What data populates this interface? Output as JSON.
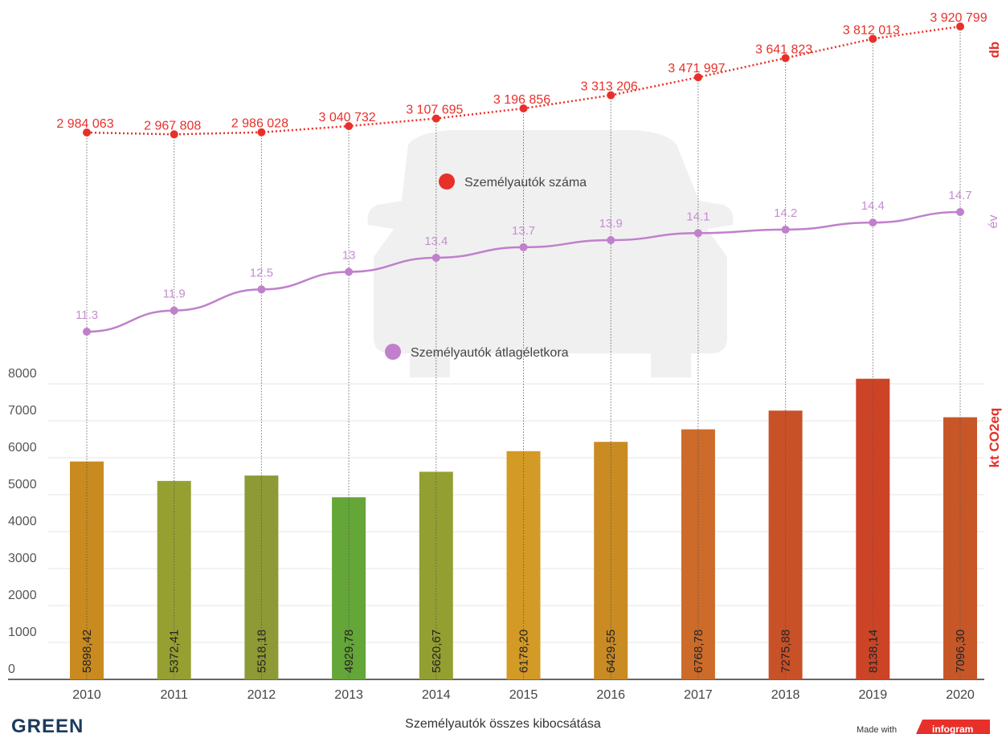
{
  "chart_data": {
    "type": "bar",
    "categories": [
      "2010",
      "2011",
      "2012",
      "2013",
      "2014",
      "2015",
      "2016",
      "2017",
      "2018",
      "2019",
      "2020"
    ],
    "bar_series": {
      "name": "Személyautók összes kibocsátása",
      "unit": "kt CO2eq",
      "values": [
        5898.42,
        5372.41,
        5518.18,
        4929.78,
        5620.67,
        6178.2,
        6429.55,
        6768.78,
        7275.88,
        8138.14,
        7096.3
      ],
      "labels": [
        "5898,42",
        "5372,41",
        "5518,18",
        "4929,78",
        "5620,67",
        "6178,20",
        "6429,55",
        "6768,78",
        "7275,88",
        "8138,14",
        "7096,30"
      ],
      "colors": [
        "#c98a1f",
        "#95a031",
        "#8d9a35",
        "#64a637",
        "#949f31",
        "#d39a26",
        "#c98b22",
        "#cd6b2a",
        "#c85128",
        "#cc4425",
        "#c85728"
      ]
    },
    "line_series": [
      {
        "name": "Személyautók száma",
        "unit": "db",
        "color": "#e8302a",
        "style": "dotted",
        "values": [
          2984063,
          2967808,
          2986028,
          3040732,
          3107695,
          3196856,
          3313206,
          3471997,
          3641823,
          3812013,
          3920799
        ],
        "labels": [
          "2 984 063",
          "2 967 808",
          "2 986 028",
          "3 040 732",
          "3 107 695",
          "3 196 856",
          "3 313 206",
          "3 471 997",
          "3 641 823",
          "3 812 013",
          "3 920 799"
        ]
      },
      {
        "name": "Személyautók átlagéletkora",
        "unit": "év",
        "color": "#c080cc",
        "style": "solid",
        "values": [
          11.3,
          11.9,
          12.5,
          13,
          13.4,
          13.7,
          13.9,
          14.1,
          14.2,
          14.4,
          14.7
        ],
        "labels": [
          "11.3",
          "11.9",
          "12.5",
          "13",
          "13.4",
          "13.7",
          "13.9",
          "14.1",
          "14.2",
          "14.4",
          "14.7"
        ]
      }
    ],
    "y_ticks": [
      "0",
      "1000",
      "2000",
      "3000",
      "4000",
      "5000",
      "6000",
      "7000",
      "8000"
    ],
    "ylim": [
      0,
      8000
    ],
    "legend_placement": "inline-center",
    "grid": true
  },
  "footer": {
    "title": "Személyautók összes kibocsátása",
    "brand": "GREEN",
    "made_with": "Made with",
    "infogram": "infogram"
  }
}
